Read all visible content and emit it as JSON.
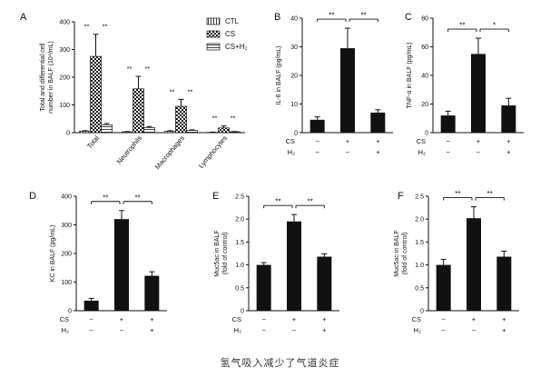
{
  "caption": "氢气吸入减少了气道炎症",
  "colors": {
    "bar_fill": "#111111",
    "axis": "#111111"
  },
  "chart_data": [
    {
      "id": "A",
      "panel_label": "A",
      "type": "bar",
      "grouped": true,
      "ylabel_lines": [
        "Total and differential cell",
        "number in BALF (10⁴/mL)"
      ],
      "ylim": [
        0,
        400
      ],
      "yticks": [
        0,
        100,
        200,
        300,
        400
      ],
      "categories": [
        "Total",
        "Neutrophils",
        "Macrophages",
        "Lymphocytes"
      ],
      "series": [
        {
          "name": "CTL",
          "pattern": "lines",
          "values": [
            5,
            3,
            5,
            1
          ],
          "errors": [
            2,
            1,
            2,
            1
          ]
        },
        {
          "name": "CS",
          "pattern": "checker",
          "values": [
            275,
            158,
            95,
            17
          ],
          "errors": [
            80,
            45,
            25,
            7
          ]
        },
        {
          "name": "CS+H₂",
          "pattern": "hlines",
          "values": [
            28,
            18,
            8,
            3
          ],
          "errors": [
            5,
            4,
            2,
            1
          ]
        }
      ],
      "significance": [
        [
          "**",
          "**"
        ],
        [
          "**",
          "**"
        ],
        [
          "**",
          "**"
        ],
        [
          "**",
          "**"
        ]
      ]
    },
    {
      "id": "B",
      "panel_label": "B",
      "type": "bar",
      "ylabel_lines": [
        "IL-6 in BALF (pg/mL)"
      ],
      "ylim": [
        0,
        40
      ],
      "yticks": [
        0,
        10,
        20,
        30,
        40
      ],
      "categories": [
        "CTL",
        "CS",
        "CS+H₂"
      ],
      "values": [
        4.5,
        29.5,
        7
      ],
      "errors": [
        1,
        7,
        1
      ],
      "condition_rows": [
        {
          "label": "CS",
          "signs": [
            "−",
            "+",
            "+"
          ]
        },
        {
          "label": "H₂",
          "signs": [
            "−",
            "−",
            "+"
          ]
        }
      ],
      "significance": [
        "**",
        "**"
      ]
    },
    {
      "id": "C",
      "panel_label": "C",
      "type": "bar",
      "ylabel_lines": [
        "TNF-α in BALF (pg/mL)"
      ],
      "ylim": [
        0,
        80
      ],
      "yticks": [
        0,
        20,
        40,
        60,
        80
      ],
      "categories": [
        "CTL",
        "CS",
        "CS+H₂"
      ],
      "values": [
        12,
        55,
        19
      ],
      "errors": [
        3,
        11,
        5
      ],
      "condition_rows": [
        {
          "label": "CS",
          "signs": [
            "−",
            "+",
            "+"
          ]
        },
        {
          "label": "H₂",
          "signs": [
            "−",
            "−",
            "+"
          ]
        }
      ],
      "significance": [
        "**",
        "*"
      ]
    },
    {
      "id": "D",
      "panel_label": "D",
      "type": "bar",
      "ylabel_lines": [
        "KC in BALF (pg/mL)"
      ],
      "ylim": [
        0,
        400
      ],
      "yticks": [
        0,
        100,
        200,
        300,
        400
      ],
      "categories": [
        "CTL",
        "CS",
        "CS+H₂"
      ],
      "values": [
        35,
        320,
        122
      ],
      "errors": [
        8,
        30,
        14
      ],
      "condition_rows": [
        {
          "label": "CS",
          "signs": [
            "−",
            "+",
            "+"
          ]
        },
        {
          "label": "H₂",
          "signs": [
            "−",
            "−",
            "+"
          ]
        }
      ],
      "significance": [
        "**",
        "**"
      ]
    },
    {
      "id": "E",
      "panel_label": "E",
      "type": "bar",
      "ylabel_lines": [
        "Muc5ac in BALF",
        "(fold of control)"
      ],
      "ylim": [
        0,
        2.5
      ],
      "yticks": [
        0,
        0.5,
        1.0,
        1.5,
        2.0,
        2.5
      ],
      "categories": [
        "CTL",
        "CS",
        "CS+H₂"
      ],
      "values": [
        1.0,
        1.95,
        1.18
      ],
      "errors": [
        0.05,
        0.15,
        0.06
      ],
      "condition_rows": [
        {
          "label": "CS",
          "signs": [
            "−",
            "+",
            "+"
          ]
        },
        {
          "label": "H₂",
          "signs": [
            "−",
            "−",
            "+"
          ]
        }
      ],
      "significance": [
        "**",
        "**"
      ]
    },
    {
      "id": "F",
      "panel_label": "F",
      "type": "bar",
      "ylabel_lines": [
        "Muc5ac in BALF",
        "(fold of control)"
      ],
      "ylim": [
        0,
        2.5
      ],
      "yticks": [
        0,
        0.5,
        1.0,
        1.5,
        2.0,
        2.5
      ],
      "categories": [
        "CTL",
        "CS",
        "CS+H₂"
      ],
      "values": [
        1.0,
        2.02,
        1.18
      ],
      "errors": [
        0.12,
        0.25,
        0.12
      ],
      "condition_rows": [
        {
          "label": "CS",
          "signs": [
            "−",
            "+",
            "+"
          ]
        },
        {
          "label": "H₂",
          "signs": [
            "−",
            "−",
            "+"
          ]
        }
      ],
      "significance": [
        "**",
        "**"
      ]
    }
  ]
}
